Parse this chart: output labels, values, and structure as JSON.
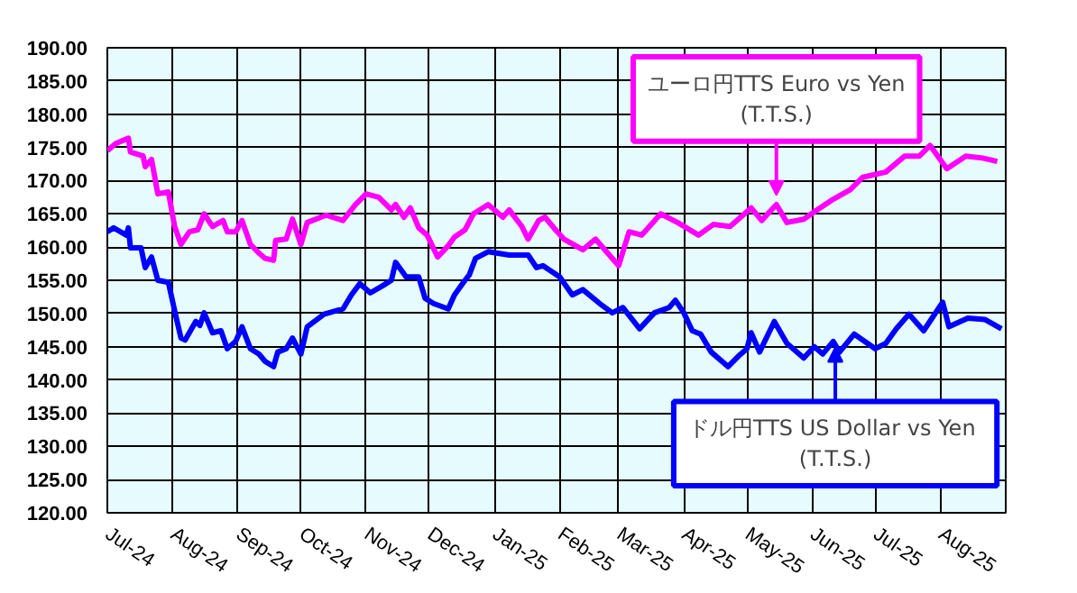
{
  "chart_data": {
    "type": "line",
    "xlim": [
      "2024-07-01",
      "2025-09-01"
    ],
    "ylim": [
      120,
      190
    ],
    "xticks": [
      {
        "value": "2024-07-01",
        "label": "Jul-24"
      },
      {
        "value": "2024-08-01",
        "label": "Aug-24"
      },
      {
        "value": "2024-09-01",
        "label": "Sep-24"
      },
      {
        "value": "2024-10-01",
        "label": "Oct-24"
      },
      {
        "value": "2024-11-01",
        "label": "Nov-24"
      },
      {
        "value": "2024-12-01",
        "label": "Dec-24"
      },
      {
        "value": "2025-01-01",
        "label": "Jan-25"
      },
      {
        "value": "2025-02-01",
        "label": "Feb-25"
      },
      {
        "value": "2025-03-01",
        "label": "Mar-25"
      },
      {
        "value": "2025-04-01",
        "label": "Apr-25"
      },
      {
        "value": "2025-05-01",
        "label": "May-25"
      },
      {
        "value": "2025-06-01",
        "label": "Jun-25"
      },
      {
        "value": "2025-07-01",
        "label": "Jul-25"
      },
      {
        "value": "2025-08-01",
        "label": "Aug-25"
      }
    ],
    "yticks": [
      {
        "value": 120,
        "label": "120.00"
      },
      {
        "value": 125,
        "label": "125.00"
      },
      {
        "value": 130,
        "label": "130.00"
      },
      {
        "value": 135,
        "label": "135.00"
      },
      {
        "value": 140,
        "label": "140.00"
      },
      {
        "value": 145,
        "label": "145.00"
      },
      {
        "value": 150,
        "label": "150.00"
      },
      {
        "value": 155,
        "label": "155.00"
      },
      {
        "value": 160,
        "label": "160.00"
      },
      {
        "value": 165,
        "label": "165.00"
      },
      {
        "value": 170,
        "label": "170.00"
      },
      {
        "value": 175,
        "label": "175.00"
      },
      {
        "value": 180,
        "label": "180.00"
      },
      {
        "value": 185,
        "label": "185.00"
      },
      {
        "value": 190,
        "label": "190.00"
      }
    ],
    "grid": true,
    "series": [
      {
        "color": "#ff00ff",
        "x": [
          "2024-07-01",
          "2024-07-05",
          "2024-07-11",
          "2024-07-12",
          "2024-07-18",
          "2024-07-19",
          "2024-07-22",
          "2024-07-25",
          "2024-07-30",
          "2024-08-02",
          "2024-08-05",
          "2024-08-09",
          "2024-08-13",
          "2024-08-16",
          "2024-08-20",
          "2024-08-25",
          "2024-08-27",
          "2024-08-31",
          "2024-09-03",
          "2024-09-07",
          "2024-09-11",
          "2024-09-14",
          "2024-09-18",
          "2024-09-19",
          "2024-09-24",
          "2024-09-27",
          "2024-10-01",
          "2024-10-04",
          "2024-10-13",
          "2024-10-21",
          "2024-10-27",
          "2024-11-01",
          "2024-11-07",
          "2024-11-13",
          "2024-11-15",
          "2024-11-19",
          "2024-11-22",
          "2024-11-26",
          "2024-11-30",
          "2024-12-05",
          "2024-12-10",
          "2024-12-13",
          "2024-12-18",
          "2024-12-22",
          "2024-12-29",
          "2025-01-05",
          "2025-01-08",
          "2025-01-14",
          "2025-01-17",
          "2025-01-22",
          "2025-01-25",
          "2025-01-30",
          "2025-02-03",
          "2025-02-12",
          "2025-02-18",
          "2025-03-01",
          "2025-03-06",
          "2025-03-12",
          "2025-03-21",
          "2025-03-29",
          "2025-04-08",
          "2025-04-15",
          "2025-04-23",
          "2025-05-03",
          "2025-05-08",
          "2025-05-15",
          "2025-05-20",
          "2025-05-28",
          "2025-06-02",
          "2025-06-11",
          "2025-06-19",
          "2025-06-25",
          "2025-07-06",
          "2025-07-15",
          "2025-07-22",
          "2025-07-27",
          "2025-08-04",
          "2025-08-13",
          "2025-08-21",
          "2025-08-28"
        ],
        "values": [
          174.5,
          175.6,
          176.4,
          174.3,
          173.7,
          172.1,
          173.2,
          168.0,
          168.3,
          163.1,
          160.4,
          162.3,
          162.6,
          165.0,
          163.1,
          164.0,
          162.3,
          162.3,
          164.0,
          160.4,
          159.1,
          158.3,
          158.0,
          161.0,
          161.2,
          164.2,
          160.4,
          163.7,
          164.8,
          164.0,
          166.4,
          168.0,
          167.5,
          165.6,
          166.4,
          164.5,
          165.9,
          162.9,
          161.8,
          158.5,
          160.2,
          161.5,
          162.6,
          165.0,
          166.4,
          164.5,
          165.6,
          163.1,
          161.2,
          164.0,
          164.5,
          162.6,
          161.2,
          159.6,
          161.2,
          157.2,
          162.3,
          161.8,
          165.0,
          163.7,
          161.8,
          163.4,
          163.1,
          165.9,
          164.0,
          166.4,
          163.7,
          164.2,
          165.3,
          167.2,
          168.6,
          170.5,
          171.3,
          173.7,
          173.7,
          175.3,
          171.8,
          173.7,
          173.4,
          172.9
        ]
      },
      {
        "color": "#0000ff",
        "x": [
          "2024-07-01",
          "2024-07-04",
          "2024-07-10",
          "2024-07-11",
          "2024-07-12",
          "2024-07-17",
          "2024-07-19",
          "2024-07-22",
          "2024-07-25",
          "2024-07-30",
          "2024-08-02",
          "2024-08-05",
          "2024-08-07",
          "2024-08-12",
          "2024-08-14",
          "2024-08-16",
          "2024-08-20",
          "2024-08-24",
          "2024-08-27",
          "2024-08-31",
          "2024-09-03",
          "2024-09-07",
          "2024-09-11",
          "2024-09-14",
          "2024-09-18",
          "2024-09-20",
          "2024-09-24",
          "2024-09-27",
          "2024-10-01",
          "2024-10-04",
          "2024-10-12",
          "2024-10-21",
          "2024-10-25",
          "2024-10-29",
          "2024-11-03",
          "2024-11-09",
          "2024-11-13",
          "2024-11-15",
          "2024-11-20",
          "2024-11-26",
          "2024-11-29",
          "2024-12-03",
          "2024-12-10",
          "2024-12-13",
          "2024-12-18",
          "2024-12-20",
          "2024-12-23",
          "2024-12-29",
          "2025-01-08",
          "2025-01-17",
          "2025-01-21",
          "2025-01-24",
          "2025-02-01",
          "2025-02-07",
          "2025-02-12",
          "2025-02-20",
          "2025-02-26",
          "2025-03-03",
          "2025-03-11",
          "2025-03-18",
          "2025-03-25",
          "2025-03-28",
          "2025-04-01",
          "2025-04-05",
          "2025-04-09",
          "2025-04-14",
          "2025-04-22",
          "2025-04-27",
          "2025-05-01",
          "2025-05-03",
          "2025-05-07",
          "2025-05-14",
          "2025-05-20",
          "2025-05-28",
          "2025-06-02",
          "2025-06-06",
          "2025-06-11",
          "2025-06-14",
          "2025-06-21",
          "2025-07-01",
          "2025-07-06",
          "2025-07-11",
          "2025-07-17",
          "2025-07-24",
          "2025-08-02",
          "2025-08-05",
          "2025-08-14",
          "2025-08-22",
          "2025-08-30"
        ],
        "values": [
          162.3,
          162.9,
          161.8,
          162.9,
          159.9,
          159.9,
          156.9,
          158.5,
          155.0,
          154.7,
          150.4,
          146.3,
          146.0,
          148.8,
          148.2,
          150.1,
          147.1,
          147.4,
          144.7,
          145.8,
          148.0,
          144.7,
          143.9,
          142.8,
          142.0,
          144.2,
          144.7,
          146.3,
          143.9,
          148.0,
          149.9,
          150.7,
          152.8,
          154.5,
          153.1,
          154.2,
          155.0,
          157.7,
          155.5,
          155.5,
          152.3,
          151.5,
          150.7,
          152.8,
          155.0,
          155.8,
          158.3,
          159.3,
          158.8,
          158.8,
          156.9,
          157.2,
          155.5,
          152.8,
          153.6,
          151.5,
          150.1,
          150.9,
          147.7,
          150.1,
          150.9,
          152.0,
          150.1,
          147.4,
          146.9,
          144.2,
          142.0,
          143.6,
          144.7,
          147.1,
          144.2,
          148.8,
          145.5,
          143.3,
          145.0,
          143.9,
          145.8,
          144.2,
          146.9,
          144.7,
          145.5,
          147.7,
          149.9,
          147.4,
          151.7,
          148.0,
          149.3,
          149.1,
          147.7
        ]
      }
    ],
    "annotations": [
      {
        "text": "ユーロ円TTS Euro vs Yen\n(T.T.S.)",
        "x": "2025-05-15",
        "y": 167.8
      },
      {
        "text": "ドル円TTS  US Dollar vs Yen\n(T.T.S.)",
        "x": "2025-06-12",
        "y": 144.9
      }
    ]
  }
}
